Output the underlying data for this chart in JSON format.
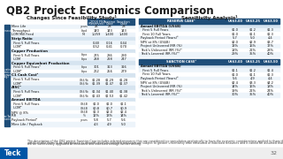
{
  "title": "QB2 Project Economics Comparison",
  "bg_color": "#ffffff",
  "title_color": "#1a1a1a",
  "header_blue": "#1f4e79",
  "light_blue_row": "#d6e4f0",
  "mid_blue_row": "#c5d9ed",
  "white_row": "#ffffff",
  "alt_row": "#e8f1f8",
  "teck_blue": "#0055a5",
  "left_table_title": "Changes Since Feasibility Study¹",
  "right_table_title": "Sensitivity Analysis¹",
  "left_col_headers": [
    "2016 FS\n(Reserves)",
    "Reserve\nCase",
    "Sanction\nCase"
  ],
  "left_rows": [
    [
      "Mine Life",
      "years",
      "25",
      "28",
      "28",
      "G"
    ],
    [
      "Throughput",
      "ktpd",
      "140",
      "143",
      "143",
      "G"
    ],
    [
      "LOM Mill Feed",
      "Mt",
      "1,259",
      "1,400",
      "1,400",
      "G"
    ],
    [
      "Strip Ratio",
      "",
      "",
      "",
      "",
      "OH"
    ],
    [
      "  First 5 Full Years",
      "",
      "0.40",
      "0.16",
      "0.44",
      "O"
    ],
    [
      "  LOM²",
      "",
      "0.52",
      "0.41",
      "0.70",
      "O"
    ],
    [
      "Copper Production",
      "",
      "",
      "",
      "",
      "OH"
    ],
    [
      "  First 5 Full Years",
      "ktpa",
      "275",
      "286",
      "290",
      "O"
    ],
    [
      "  LOM",
      "ktpa",
      "238",
      "228",
      "247",
      "O"
    ],
    [
      "Copper Equivalent Production",
      "",
      "",
      "",
      "",
      "OH"
    ],
    [
      "  First 5 Full Years²",
      "ktpa",
      "301",
      "313",
      "316",
      "O"
    ],
    [
      "  LOM²",
      "ktpa",
      "262",
      "256",
      "279",
      "O"
    ],
    [
      "C1 Cash Cost²",
      "",
      "",
      "",
      "",
      "OH"
    ],
    [
      "  First 5 Full Years",
      "US$/lb",
      "$1.28",
      "$1.29",
      "$1.28",
      "O"
    ],
    [
      "  LOM²",
      "US$/lb",
      "$1.39",
      "$1.47",
      "$1.37",
      "O"
    ],
    [
      "AISC²",
      "",
      "",
      "",
      "",
      "OH"
    ],
    [
      "  First 5 Full Years",
      "US$/lb",
      "$1.34",
      "$1.40",
      "$1.38",
      "O"
    ],
    [
      "  LOM²",
      "US$/lb",
      "$1.43",
      "$1.53",
      "$1.42",
      "O"
    ],
    [
      "Annual EBITDA",
      "",
      "",
      "",
      "",
      "OH"
    ],
    [
      "  First 5 Full Years",
      "US$B",
      "$1.0",
      "$1.0",
      "$1.1",
      "O"
    ],
    [
      "  LOM²",
      "US$B",
      "$0.8",
      "$0.7",
      "$0.9",
      "O"
    ],
    [
      "NPV @ 8%",
      "US$B",
      "$1.3",
      "$2.0",
      "$2.4",
      "A"
    ],
    [
      "IRR",
      "%",
      "12%",
      "13%",
      "14%",
      "A"
    ],
    [
      "Payback Period²",
      "years",
      "5.8",
      "5.7",
      "5.6",
      "A"
    ],
    [
      "Mine Life / Payback",
      "",
      "4.3",
      "4.9",
      "5.0",
      "A"
    ]
  ],
  "right_reserve_header": [
    "RESERVE CASE⁸",
    "US$3.00",
    "US$3.25",
    "US$3.50"
  ],
  "right_reserve_rows": [
    [
      "Annual EBITDA (US$B)",
      "",
      "",
      "",
      "H"
    ],
    [
      "  First 5 Full Years",
      "$1.0",
      "$1.2",
      "$1.3",
      "N"
    ],
    [
      "  First 10 Full Years",
      "$1.0",
      "$1.1",
      "$1.3",
      "N"
    ],
    [
      "Payback Period (Years)⁶",
      "5.7",
      "5.0",
      "4.4",
      "N"
    ],
    [
      "NPV at 8% (US$B)",
      "$2.0",
      "$2.9",
      "$3.7",
      "N"
    ],
    [
      "Project Unlevered IRR (%)",
      "13%",
      "16%",
      "17%",
      "N"
    ],
    [
      "Teck's Unlevered IRR (%)⁹",
      "18%",
      "21%",
      "23%",
      "N"
    ],
    [
      "Teck's Levered IRR (%)¹⁰",
      "29%",
      "35%",
      "40%",
      "N"
    ]
  ],
  "right_sanction_header": [
    "SANCTION CASE⁸",
    "US$3.00",
    "US$3.25",
    "US$3.50"
  ],
  "right_sanction_rows": [
    [
      "Annual EBITDA (US$B)",
      "",
      "",
      "",
      "H"
    ],
    [
      "  First 5 Full Years",
      "$1.1",
      "$1.2",
      "$1.4",
      "N"
    ],
    [
      "  First 10 Full Years",
      "$1.0",
      "$1.1",
      "$1.3",
      "N"
    ],
    [
      "Payback Period (Years)⁶",
      "5.6",
      "4.9",
      "4.4",
      "N"
    ],
    [
      "NPV at 8% (US$B)",
      "$2.4",
      "$3.3",
      "$4.2",
      "N"
    ],
    [
      "Project Unlevered IRR (%)",
      "14%",
      "16%",
      "18%",
      "N"
    ],
    [
      "Teck's Unlevered IRR (%)⁹",
      "19%",
      "21%",
      "24%",
      "N"
    ],
    [
      "Teck's Levered IRR (%)¹⁰",
      "30%",
      "35%",
      "40%",
      "N"
    ]
  ],
  "section_side_labels": [
    [
      0,
      2,
      "General"
    ],
    [
      3,
      20,
      "Operating\nMetrics\n(Annual\nAvg.)"
    ],
    [
      21,
      24,
      "After-Tax\nEconomics"
    ]
  ],
  "footnote1": "The description of the QB2 project Sanction Case includes inferred resources that are considered too speculative geologically to have the economic considerations applied to them that",
  "footnote2": "would enable them to be categorized as mineral reserves. Inferred resources are subject to greater uncertainty than measured or indicated resources and it cannot be assumed that they",
  "footnote3": "will be successfully upgraded to measured and indicated through further drilling.",
  "page_num": "32"
}
